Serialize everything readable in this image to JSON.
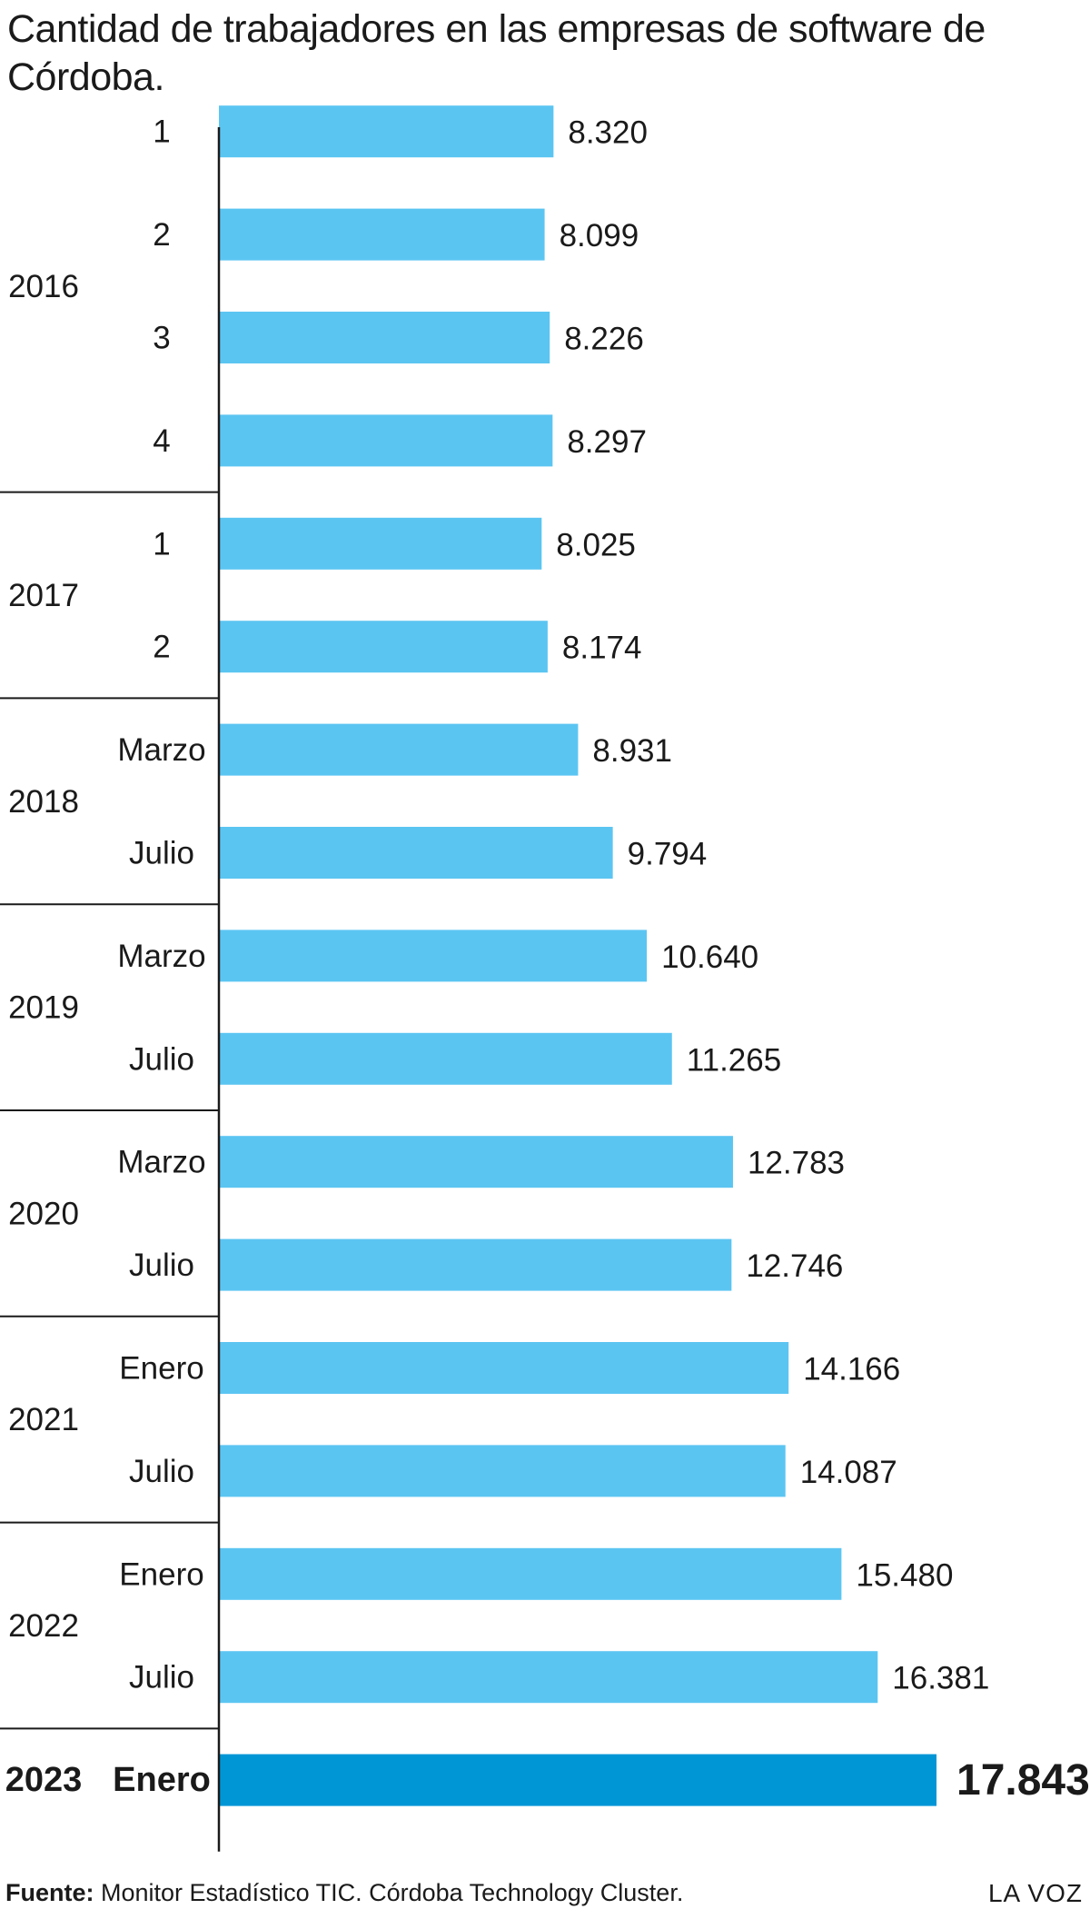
{
  "chart_data": {
    "type": "bar",
    "orientation": "horizontal",
    "title": "Cantidad de trabajadores en las empresas de software de Córdoba.",
    "groups": [
      {
        "year": "2016",
        "items": [
          {
            "period": "1",
            "value": 8320,
            "label": "8.320"
          },
          {
            "period": "2",
            "value": 8099,
            "label": "8.099"
          },
          {
            "period": "3",
            "value": 8226,
            "label": "8.226"
          },
          {
            "period": "4",
            "value": 8297,
            "label": "8.297"
          }
        ]
      },
      {
        "year": "2017",
        "items": [
          {
            "period": "1",
            "value": 8025,
            "label": "8.025"
          },
          {
            "period": "2",
            "value": 8174,
            "label": "8.174"
          }
        ]
      },
      {
        "year": "2018",
        "items": [
          {
            "period": "Marzo",
            "value": 8931,
            "label": "8.931"
          },
          {
            "period": "Julio",
            "value": 9794,
            "label": "9.794"
          }
        ]
      },
      {
        "year": "2019",
        "items": [
          {
            "period": "Marzo",
            "value": 10640,
            "label": "10.640"
          },
          {
            "period": "Julio",
            "value": 11265,
            "label": "11.265"
          }
        ]
      },
      {
        "year": "2020",
        "items": [
          {
            "period": "Marzo",
            "value": 12783,
            "label": "12.783"
          },
          {
            "period": "Julio",
            "value": 12746,
            "label": "12.746"
          }
        ]
      },
      {
        "year": "2021",
        "items": [
          {
            "period": "Enero",
            "value": 14166,
            "label": "14.166"
          },
          {
            "period": "Julio",
            "value": 14087,
            "label": "14.087"
          }
        ]
      },
      {
        "year": "2022",
        "items": [
          {
            "period": "Enero",
            "value": 15480,
            "label": "15.480"
          },
          {
            "period": "Julio",
            "value": 16381,
            "label": "16.381"
          }
        ]
      },
      {
        "year": "2023",
        "highlight": true,
        "items": [
          {
            "period": "Enero",
            "value": 17843,
            "label": "17.843"
          }
        ]
      }
    ],
    "xlim": [
      0,
      17843
    ],
    "grid": false,
    "legend": "none",
    "colors": {
      "bar": "#5bc5f2",
      "highlight": "#0096d6",
      "axis": "#1a1a1a",
      "separator": "#1a1a1a"
    }
  },
  "footer": {
    "source_label": "Fuente:",
    "source_text": " Monitor Estadístico TIC. Córdoba Technology Cluster.",
    "brand": "LA VOZ"
  }
}
